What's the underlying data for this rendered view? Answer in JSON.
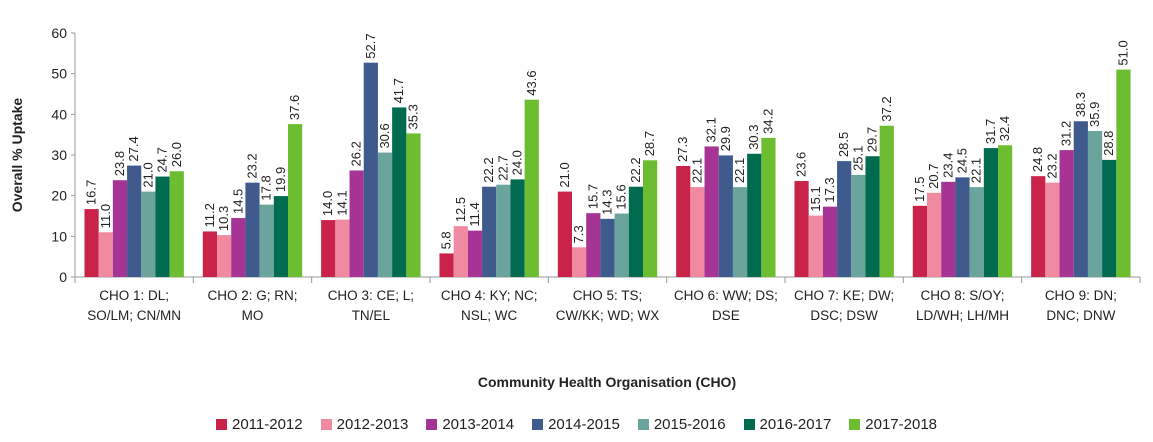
{
  "chart_data": {
    "type": "bar",
    "ylabel": "Overall % Uptake",
    "xlabel": "Community Health Organisation (CHO)",
    "categories": [
      "CHO 1: DL; SO/LM; CN/MN",
      "CHO 2: G; RN; MO",
      "CHO 3: CE; L; TN/EL",
      "CHO 4: KY; NC; NSL; WC",
      "CHO 5: TS; CW/KK; WD; WX",
      "CHO 6: WW; DS; DSE",
      "CHO 7: KE; DW; DSC; DSW",
      "CHO 8: S/OY; LD/WH; LH/MH",
      "CHO 9: DN; DNC; DNW"
    ],
    "series": [
      {
        "name": "2011-2012",
        "color": "#c9234a",
        "values": [
          16.7,
          11.2,
          14,
          5.8,
          21,
          27.3,
          23.6,
          17.5,
          24.8
        ],
        "value_labels": [
          "16.7",
          "11.2",
          "14.0",
          "5.8",
          "21.0",
          "27.3",
          "23.6",
          "17.5",
          "24.8"
        ]
      },
      {
        "name": "2012-2013",
        "color": "#f08aa0",
        "values": [
          11,
          10.3,
          14.1,
          12.5,
          7.3,
          22.1,
          15.1,
          20.7,
          23.2
        ],
        "value_labels": [
          "11.0",
          "10.3",
          "14.1",
          "12.5",
          "7.3",
          "22.1",
          "15.1",
          "20.7",
          "23.2"
        ]
      },
      {
        "name": "2013-2014",
        "color": "#a63494",
        "values": [
          23.8,
          14.5,
          26.2,
          11.4,
          15.7,
          32.1,
          17.3,
          23.4,
          31.2
        ],
        "value_labels": [
          "23.8",
          "14.5",
          "26.2",
          "11.4",
          "15.7",
          "32.1",
          "17.3",
          "23.4",
          "31.2"
        ]
      },
      {
        "name": "2014-2015",
        "color": "#3f5b8d",
        "values": [
          27.4,
          23.2,
          52.7,
          22.2,
          14.3,
          29.9,
          28.5,
          24.5,
          38.3
        ],
        "value_labels": [
          "27.4",
          "23.2",
          "52.7",
          "22.2",
          "14.3",
          "29.9",
          "28.5",
          "24.5",
          "38.3"
        ]
      },
      {
        "name": "2015-2016",
        "color": "#6aa49c",
        "values": [
          21,
          17.8,
          30.6,
          22.7,
          15.6,
          22.1,
          25.1,
          22.1,
          35.9
        ],
        "value_labels": [
          "21.0",
          "17.8",
          "30.6",
          "22.7",
          "15.6",
          "22.1",
          "25.1",
          "22.1",
          "35.9"
        ]
      },
      {
        "name": "2016-2017",
        "color": "#006b4f",
        "values": [
          24.7,
          19.9,
          41.7,
          24,
          22.2,
          30.3,
          29.7,
          31.7,
          28.8
        ],
        "value_labels": [
          "24.7",
          "19.9",
          "41.7",
          "24.0",
          "22.2",
          "30.3",
          "29.7",
          "31.7",
          "28.8"
        ]
      },
      {
        "name": "2017-2018",
        "color": "#6cbd30",
        "values": [
          26,
          37.6,
          35.3,
          43.6,
          28.7,
          34.2,
          37.2,
          32.4,
          51
        ],
        "value_labels": [
          "26.0",
          "37.6",
          "35.3",
          "43.6",
          "28.7",
          "34.2",
          "37.2",
          "32.4",
          "51.0"
        ]
      }
    ],
    "ylim": [
      0,
      60
    ],
    "yticks": [
      0,
      10,
      20,
      30,
      40,
      50,
      60
    ],
    "grid": false,
    "legend": "bottom"
  }
}
